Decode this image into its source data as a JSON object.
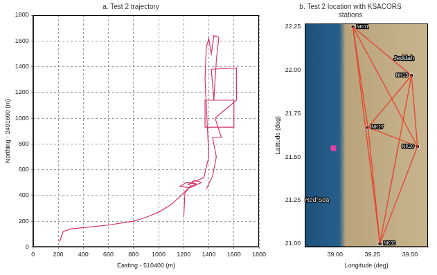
{
  "chart_data": [
    {
      "type": "line",
      "title": "a. Test 2 trajectory",
      "x_label": "Easting - 510400 (m)",
      "y_label": "Northing - 2401600 (m)",
      "xlim": [
        0,
        1800
      ],
      "ylim": [
        0,
        1800
      ],
      "xticks": [
        0,
        200,
        400,
        600,
        800,
        1000,
        1200,
        1400,
        1600,
        1800
      ],
      "yticks": [
        0,
        200,
        400,
        600,
        800,
        1000,
        1200,
        1400,
        1600,
        1800
      ],
      "grid": true,
      "series": [
        {
          "color": "#d6336c",
          "x": [
            210,
            240,
            300,
            400,
            500,
            600,
            700,
            800,
            900,
            1000,
            1100,
            1180,
            1240,
            1300,
            1220,
            1170,
            1250,
            1340,
            1290,
            1230,
            1360,
            1400,
            1390,
            1380,
            1370,
            1380,
            1400,
            1420,
            1440,
            1480,
            1460,
            1450,
            1440,
            1370,
            1370,
            1600,
            1600,
            1440,
            1420,
            1620,
            1620,
            1450,
            1500,
            1430,
            1460,
            1430,
            1380,
            1380,
            1200,
            1210,
            1260
          ],
          "values": [
            40,
            120,
            140,
            150,
            160,
            170,
            185,
            200,
            230,
            270,
            330,
            400,
            460,
            490,
            500,
            470,
            460,
            500,
            520,
            480,
            540,
            700,
            900,
            1100,
            1300,
            1550,
            1620,
            1500,
            1640,
            1630,
            1450,
            1300,
            1140,
            1140,
            930,
            930,
            1140,
            1140,
            1380,
            1390,
            1140,
            1000,
            850,
            850,
            700,
            550,
            450,
            null,
            230,
            420,
            480
          ]
        }
      ]
    },
    {
      "type": "scatter",
      "title": "b. Test 2 location with KSACORS stations",
      "x_label": "Longitude (deg)",
      "y_label": "Latitude (deg)",
      "xlim": [
        38.8,
        39.62
      ],
      "ylim": [
        20.98,
        22.27
      ],
      "xticks": [
        {
          "value": 39,
          "label": "39.00"
        },
        {
          "value": 39.25,
          "label": "39.25"
        },
        {
          "value": 39.5,
          "label": "39.50"
        }
      ],
      "yticks": [
        {
          "value": 21,
          "label": "21.00"
        },
        {
          "value": 21.25,
          "label": "21.25"
        },
        {
          "value": 21.5,
          "label": "21.50"
        },
        {
          "value": 21.75,
          "label": "21.75"
        },
        {
          "value": 22,
          "label": "22.00"
        },
        {
          "value": 22.25,
          "label": "22.25"
        }
      ],
      "grid": false,
      "stations": {
        "color": "#111111",
        "marker": "circle",
        "points": [
          {
            "label": "NK01",
            "x": 39.12,
            "y": 22.25
          },
          {
            "label": "NK13",
            "x": 39.51,
            "y": 21.97
          },
          {
            "label": "NK17",
            "x": 39.22,
            "y": 21.67
          },
          {
            "label": "NK20",
            "x": 39.55,
            "y": 21.56
          },
          {
            "label": "NK03",
            "x": 39.3,
            "y": 21.0
          }
        ]
      },
      "baselines": {
        "color": "#e8412c",
        "pairs": [
          [
            "NK01",
            "NK13"
          ],
          [
            "NK01",
            "NK17"
          ],
          [
            "NK01",
            "NK20"
          ],
          [
            "NK01",
            "NK03"
          ],
          [
            "NK13",
            "NK17"
          ],
          [
            "NK13",
            "NK20"
          ],
          [
            "NK13",
            "NK03"
          ],
          [
            "NK17",
            "NK20"
          ],
          [
            "NK17",
            "NK03"
          ],
          [
            "NK20",
            "NK03"
          ]
        ]
      },
      "test_site": {
        "x": 38.99,
        "y": 21.55,
        "color": "#e040a0",
        "marker": "square"
      },
      "annotations": [
        {
          "text": "Jeddah",
          "x": 39.46,
          "y": 22.07
        },
        {
          "text": "Red Sea",
          "x": 38.88,
          "y": 21.25
        }
      ]
    }
  ]
}
